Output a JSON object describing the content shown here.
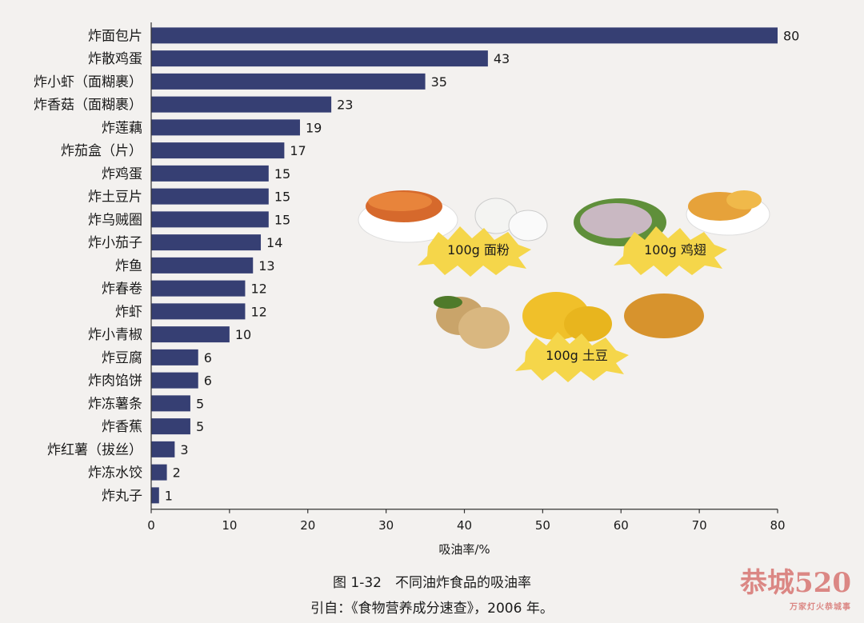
{
  "chart_data": {
    "type": "bar",
    "orientation": "horizontal",
    "categories": [
      "炸面包片",
      "炸散鸡蛋",
      "炸小虾（面糊裹）",
      "炸香菇（面糊裹）",
      "炸莲藕",
      "炸茄盒（片）",
      "炸鸡蛋",
      "炸土豆片",
      "炸乌贼圈",
      "炸小茄子",
      "炸鱼",
      "炸春卷",
      "炸虾",
      "炸小青椒",
      "炸豆腐",
      "炸肉馅饼",
      "炸冻薯条",
      "炸香蕉",
      "炸红薯（拔丝）",
      "炸冻水饺",
      "炸丸子"
    ],
    "values": [
      80,
      43,
      35,
      23,
      19,
      17,
      15,
      15,
      15,
      14,
      13,
      12,
      12,
      10,
      6,
      6,
      5,
      5,
      3,
      2,
      1
    ],
    "xlabel": "吸油率/%",
    "xlim": [
      0,
      80
    ],
    "xticks": [
      0,
      10,
      20,
      30,
      40,
      50,
      60,
      70,
      80
    ],
    "bar_color": "#363f73",
    "grid": false
  },
  "illustrations": [
    {
      "name": "flour",
      "label": "100g 面粉"
    },
    {
      "name": "chicken-wing",
      "label": "100g 鸡翅"
    },
    {
      "name": "potato",
      "label": "100g 土豆"
    }
  ],
  "caption": {
    "figure": "图 1-32　不同油炸食品的吸油率",
    "source": "引自：《食物营养成分速查》，2006 年。"
  },
  "watermark": {
    "text": "恭城520",
    "sub": "万家灯火恭城事"
  }
}
